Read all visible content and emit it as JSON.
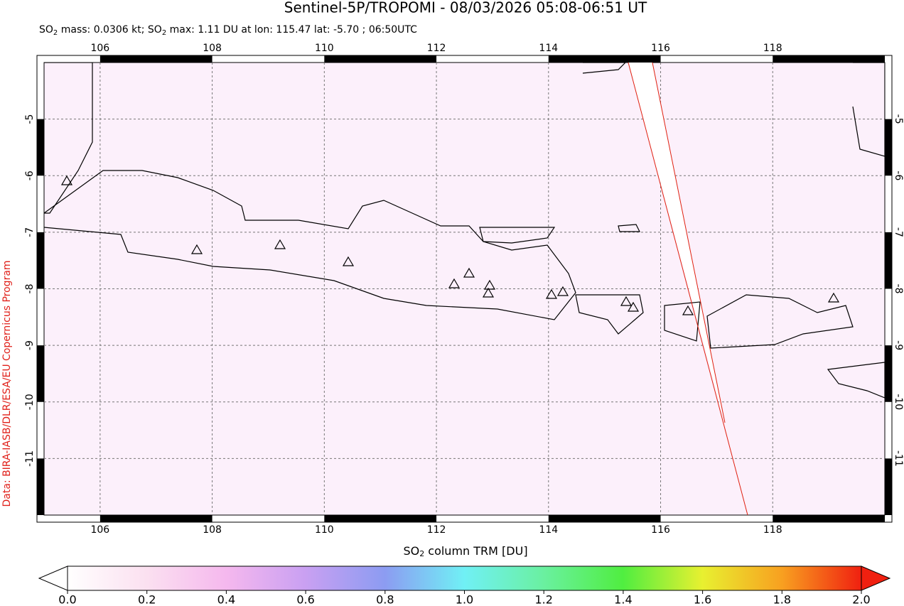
{
  "chart_data": {
    "type": "map",
    "title": "Sentinel-5P/TROPOMI - 08/03/2026 05:08-06:51 UT",
    "subtitle_parts": [
      "SO",
      "2",
      " mass: 0.0306 kt; SO",
      "2",
      " max: 1.11 DU at lon: 115.47 lat: -5.70 ; 06:50UTC"
    ],
    "credit": "Data: BIRA-IASB/DLR/ESA/EU Copernicus Program",
    "xlim": [
      105,
      120
    ],
    "xticks": [
      106,
      108,
      110,
      112,
      114,
      116,
      118
    ],
    "ylim": [
      -12,
      -4
    ],
    "yticks": [
      -11,
      -10,
      -9,
      -8,
      -7,
      -6,
      -5
    ],
    "colorbar": {
      "label_parts": [
        "SO",
        "2",
        " column TRM [DU]"
      ],
      "lim": [
        0,
        2
      ],
      "ticks": [
        {
          "value": 0,
          "label": "0.0"
        },
        {
          "value": 0.2,
          "label": "0.2"
        },
        {
          "value": 0.4,
          "label": "0.4"
        },
        {
          "value": 0.6,
          "label": "0.6"
        },
        {
          "value": 0.8,
          "label": "0.8"
        },
        {
          "value": 1,
          "label": "1.0"
        },
        {
          "value": 1.2,
          "label": "1.2"
        },
        {
          "value": 1.4,
          "label": "1.4"
        },
        {
          "value": 1.6,
          "label": "1.6"
        },
        {
          "value": 1.8,
          "label": "1.8"
        },
        {
          "value": 2,
          "label": "2.0"
        }
      ]
    }
  }
}
